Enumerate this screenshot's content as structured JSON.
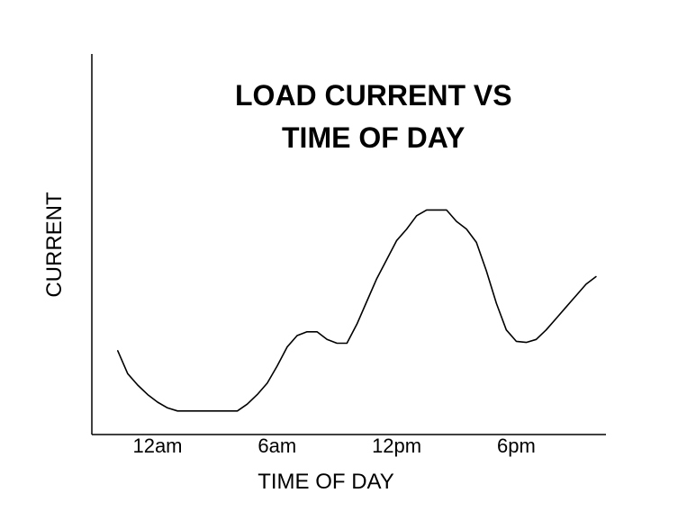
{
  "chart_data": {
    "type": "line",
    "title_lines": [
      "LOAD CURRENT VS",
      "TIME OF DAY"
    ],
    "xlabel": "TIME OF DAY",
    "ylabel": "CURRENT",
    "x_ticks": [
      {
        "label": "12am",
        "x": 0
      },
      {
        "label": "6am",
        "x": 6
      },
      {
        "label": "12pm",
        "x": 12
      },
      {
        "label": "6pm",
        "x": 18
      }
    ],
    "xlim": [
      -3.3,
      22.5
    ],
    "ylim": [
      0,
      10
    ],
    "grid": false,
    "legend": "none",
    "color": "#000000",
    "series": [
      {
        "x": [
          -2.0,
          -1.5,
          -1.0,
          -0.5,
          0.0,
          0.5,
          1.0,
          2.0,
          3.0,
          4.0,
          4.5,
          5.0,
          5.5,
          6.0,
          6.5,
          7.0,
          7.5,
          8.0,
          8.5,
          9.0,
          9.5,
          10.0,
          10.5,
          11.0,
          11.5,
          12.0,
          12.5,
          13.0,
          13.5,
          14.0,
          14.5,
          15.0,
          15.5,
          16.0,
          16.5,
          17.0,
          17.5,
          18.0,
          18.5,
          19.0,
          19.5,
          20.0,
          20.5,
          21.0,
          21.5,
          22.0
        ],
        "y": [
          2.2,
          1.6,
          1.3,
          1.05,
          0.85,
          0.7,
          0.62,
          0.62,
          0.62,
          0.62,
          0.8,
          1.05,
          1.35,
          1.8,
          2.3,
          2.6,
          2.7,
          2.7,
          2.5,
          2.4,
          2.4,
          2.9,
          3.5,
          4.1,
          4.6,
          5.1,
          5.4,
          5.75,
          5.9,
          5.9,
          5.9,
          5.6,
          5.4,
          5.05,
          4.3,
          3.45,
          2.75,
          2.45,
          2.42,
          2.5,
          2.75,
          3.05,
          3.35,
          3.65,
          3.95,
          4.15
        ]
      }
    ]
  }
}
